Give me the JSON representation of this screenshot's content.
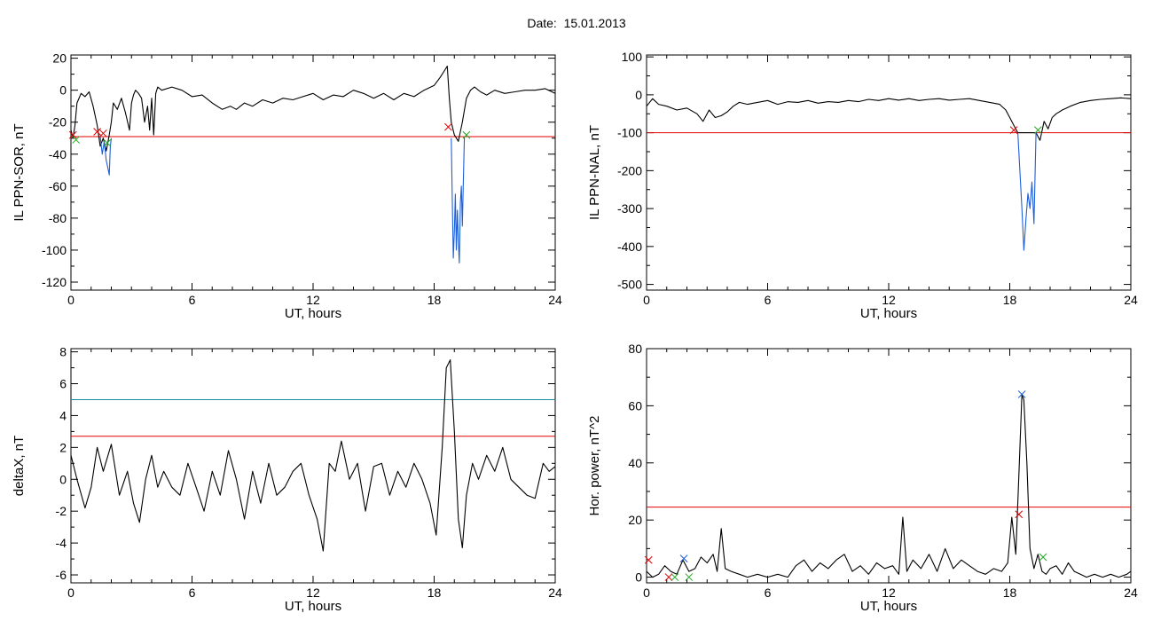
{
  "figure": {
    "title": "Date:  15.01.2013"
  },
  "chart_data": [
    {
      "type": "line",
      "xlabel": "UT, hours",
      "ylabel": "IL PPN-SOR, nT",
      "xlim": [
        0,
        24
      ],
      "ylim": [
        -125,
        22
      ],
      "xticks": [
        0,
        6,
        12,
        18,
        24
      ],
      "yticks": [
        -120,
        -100,
        -80,
        -60,
        -40,
        -20,
        0,
        20
      ],
      "threshold_lines": [
        {
          "value": -29,
          "color": "#e00000"
        }
      ],
      "series": [
        {
          "color": "#000000",
          "x": [
            0,
            0.1,
            0.2,
            0.3,
            0.5,
            0.7,
            0.9,
            1.1,
            1.3,
            1.45,
            1.6,
            1.75,
            1.9,
            2.0,
            2.1,
            2.3,
            2.5,
            2.7,
            2.9,
            3.0,
            3.1,
            3.2,
            3.35,
            3.5,
            3.65,
            3.8,
            3.9,
            4.0,
            4.1,
            4.2,
            4.3,
            4.5,
            5.0,
            5.5,
            6.0,
            6.5,
            7.0,
            7.5,
            7.9,
            8.2,
            8.6,
            9.0,
            9.5,
            10.0,
            10.5,
            11.0,
            11.5,
            12.0,
            12.5,
            13.0,
            13.5,
            14.0,
            14.5,
            15.0,
            15.5,
            16.0,
            16.5,
            17.0,
            17.5,
            18.0,
            18.3,
            18.5,
            18.65,
            18.75,
            18.85,
            19.0,
            19.2,
            19.4,
            19.6,
            19.8,
            20.0,
            20.3,
            20.6,
            21.0,
            21.5,
            22.0,
            22.5,
            23.0,
            23.5,
            24.0
          ],
          "y": [
            -25,
            -30,
            -22,
            -8,
            -2,
            -4,
            -1,
            -10,
            -22,
            -35,
            -30,
            -38,
            -28,
            -20,
            -8,
            -12,
            -5,
            -14,
            -25,
            -8,
            -3,
            0,
            -2,
            -5,
            -20,
            -10,
            -25,
            -5,
            -28,
            -2,
            2,
            0,
            2,
            0,
            -4,
            -3,
            -8,
            -12,
            -10,
            -12,
            -8,
            -10,
            -6,
            -8,
            -5,
            -6,
            -4,
            -2,
            -6,
            -3,
            -4,
            0,
            -2,
            -5,
            -2,
            -6,
            -2,
            -4,
            0,
            3,
            8,
            12,
            15,
            -5,
            -20,
            -28,
            -32,
            -20,
            -5,
            0,
            2,
            -1,
            -3,
            0,
            -2,
            -1,
            0,
            0,
            1,
            -2
          ]
        },
        {
          "color": "#1f5fd6",
          "segments": [
            {
              "x": [
                1.45,
                1.55,
                1.65,
                1.75,
                1.82,
                1.9,
                1.95,
                2.0
              ],
              "y": [
                -29,
                -40,
                -32,
                -44,
                -48,
                -53,
                -35,
                -30
              ]
            },
            {
              "x": [
                18.85,
                18.9,
                18.95,
                19.0,
                19.05,
                19.1,
                19.15,
                19.2,
                19.25,
                19.3,
                19.35,
                19.4,
                19.45,
                19.5
              ],
              "y": [
                -30,
                -70,
                -105,
                -88,
                -65,
                -100,
                -75,
                -95,
                -108,
                -70,
                -60,
                -85,
                -55,
                -29
              ]
            }
          ]
        }
      ],
      "markers": [
        {
          "x": 0.1,
          "y": -28,
          "color": "#e00000"
        },
        {
          "x": 0.25,
          "y": -31,
          "color": "#22aa22"
        },
        {
          "x": 1.3,
          "y": -26,
          "color": "#e00000"
        },
        {
          "x": 1.8,
          "y": -33,
          "color": "#22aa22"
        },
        {
          "x": 1.6,
          "y": -27,
          "color": "#e00000"
        },
        {
          "x": 18.7,
          "y": -23,
          "color": "#e00000"
        },
        {
          "x": 19.6,
          "y": -28,
          "color": "#22aa22"
        }
      ]
    },
    {
      "type": "line",
      "xlabel": "UT, hours",
      "ylabel": "IL PPN-NAL, nT",
      "xlim": [
        0,
        24
      ],
      "ylim": [
        -515,
        105
      ],
      "xticks": [
        0,
        6,
        12,
        18,
        24
      ],
      "yticks": [
        -500,
        -400,
        -300,
        -200,
        -100,
        0,
        100
      ],
      "threshold_lines": [
        {
          "value": -100,
          "color": "#e00000"
        }
      ],
      "series": [
        {
          "color": "#000000",
          "x": [
            0,
            0.3,
            0.6,
            1.0,
            1.5,
            2.0,
            2.5,
            2.8,
            3.1,
            3.4,
            3.7,
            4.0,
            4.3,
            4.6,
            5.0,
            5.5,
            6.0,
            6.5,
            7.0,
            7.5,
            8.0,
            8.5,
            9.0,
            9.5,
            10.0,
            10.5,
            11.0,
            11.5,
            12.0,
            12.5,
            13.0,
            13.5,
            14.0,
            14.5,
            15.0,
            15.5,
            16.0,
            16.5,
            17.0,
            17.5,
            17.8,
            18.0,
            18.2,
            18.4,
            19.3,
            19.5,
            19.7,
            19.9,
            20.1,
            20.3,
            20.6,
            21.0,
            21.5,
            22.0,
            22.5,
            23.0,
            23.5,
            24.0
          ],
          "y": [
            -30,
            -10,
            -25,
            -30,
            -40,
            -35,
            -50,
            -70,
            -40,
            -60,
            -55,
            -45,
            -30,
            -20,
            -25,
            -20,
            -15,
            -25,
            -18,
            -20,
            -15,
            -22,
            -18,
            -20,
            -15,
            -18,
            -12,
            -15,
            -10,
            -14,
            -10,
            -15,
            -12,
            -10,
            -14,
            -12,
            -10,
            -15,
            -20,
            -25,
            -40,
            -60,
            -80,
            -100,
            -100,
            -120,
            -70,
            -90,
            -60,
            -50,
            -40,
            -30,
            -20,
            -15,
            -12,
            -10,
            -8,
            -10
          ]
        },
        {
          "color": "#1f5fd6",
          "segments": [
            {
              "x": [
                18.4,
                18.5,
                18.6,
                18.7,
                18.8,
                18.9,
                19.0,
                19.1,
                19.2,
                19.3
              ],
              "y": [
                -100,
                -200,
                -300,
                -410,
                -330,
                -260,
                -300,
                -230,
                -340,
                -100
              ]
            }
          ]
        }
      ],
      "markers": [
        {
          "x": 18.2,
          "y": -93,
          "color": "#e00000"
        },
        {
          "x": 19.4,
          "y": -93,
          "color": "#22aa22"
        }
      ]
    },
    {
      "type": "line",
      "xlabel": "UT, hours",
      "ylabel": "deltaX, nT",
      "xlim": [
        0,
        24
      ],
      "ylim": [
        -6.5,
        8.2
      ],
      "xticks": [
        0,
        6,
        12,
        18,
        24
      ],
      "yticks": [
        -6,
        -4,
        -2,
        0,
        2,
        4,
        6,
        8
      ],
      "threshold_lines": [
        {
          "value": 5.0,
          "color": "#1f8fa0"
        },
        {
          "value": 2.7,
          "color": "#e00000"
        }
      ],
      "series": [
        {
          "color": "#000000",
          "x": [
            0,
            0.3,
            0.7,
            1.0,
            1.3,
            1.6,
            2.0,
            2.4,
            2.8,
            3.1,
            3.4,
            3.7,
            4.0,
            4.3,
            4.6,
            5.0,
            5.4,
            5.8,
            6.2,
            6.6,
            7.0,
            7.4,
            7.8,
            8.2,
            8.6,
            9.0,
            9.4,
            9.8,
            10.2,
            10.6,
            11.0,
            11.4,
            11.8,
            12.2,
            12.5,
            12.8,
            13.1,
            13.4,
            13.8,
            14.2,
            14.6,
            15.0,
            15.4,
            15.8,
            16.2,
            16.6,
            17.0,
            17.4,
            17.8,
            18.1,
            18.4,
            18.6,
            18.8,
            19.0,
            19.2,
            19.4,
            19.6,
            19.9,
            20.2,
            20.6,
            21.0,
            21.4,
            21.8,
            22.2,
            22.6,
            23.0,
            23.4,
            23.7,
            24.0
          ],
          "y": [
            1.5,
            0,
            -1.8,
            -0.5,
            2.0,
            0.5,
            2.2,
            -1.0,
            0.5,
            -1.5,
            -2.7,
            0,
            1.5,
            -0.5,
            0.5,
            -0.5,
            -1.0,
            1.0,
            -0.5,
            -2.0,
            0.5,
            -1.0,
            1.8,
            0,
            -2.5,
            0.5,
            -1.5,
            1.0,
            -1.0,
            -0.5,
            0.5,
            1.0,
            -1.0,
            -2.5,
            -4.5,
            1.0,
            0.5,
            2.4,
            0,
            1.0,
            -2.0,
            0.8,
            1.0,
            -1.0,
            0.5,
            -0.5,
            1.0,
            0,
            -1.5,
            -3.5,
            2.0,
            7.0,
            7.5,
            3.0,
            -2.5,
            -4.3,
            -1.0,
            1.0,
            0,
            1.5,
            0.5,
            2.0,
            0,
            -0.5,
            -1.0,
            -1.2,
            1.0,
            0.5,
            0.8
          ]
        }
      ],
      "markers": []
    },
    {
      "type": "line",
      "xlabel": "UT, hours",
      "ylabel": "Hor. power, nT^2",
      "xlim": [
        0,
        24
      ],
      "ylim": [
        -2,
        80
      ],
      "xticks": [
        0,
        6,
        12,
        18,
        24
      ],
      "yticks": [
        0,
        20,
        40,
        60,
        80
      ],
      "threshold_lines": [
        {
          "value": 24.5,
          "color": "#e00000"
        }
      ],
      "series": [
        {
          "color": "#000000",
          "x": [
            0,
            0.3,
            0.6,
            0.9,
            1.2,
            1.5,
            1.8,
            2.1,
            2.4,
            2.7,
            3.0,
            3.3,
            3.5,
            3.7,
            3.9,
            4.2,
            4.6,
            5.0,
            5.5,
            6.0,
            6.5,
            7.0,
            7.4,
            7.8,
            8.2,
            8.6,
            9.0,
            9.4,
            9.8,
            10.2,
            10.6,
            11.0,
            11.4,
            11.8,
            12.2,
            12.5,
            12.7,
            12.9,
            13.2,
            13.6,
            14.0,
            14.4,
            14.8,
            15.2,
            15.6,
            16.0,
            16.4,
            16.8,
            17.2,
            17.6,
            17.9,
            18.1,
            18.3,
            18.45,
            18.6,
            18.7,
            18.85,
            19.0,
            19.2,
            19.4,
            19.6,
            19.8,
            20.0,
            20.3,
            20.6,
            20.9,
            21.2,
            21.5,
            21.8,
            22.2,
            22.6,
            23.0,
            23.4,
            23.8,
            24.0
          ],
          "y": [
            2,
            0,
            1,
            4,
            2,
            1,
            6,
            2,
            3,
            7,
            5,
            8,
            2,
            17,
            3,
            2,
            1,
            0,
            1,
            0,
            1,
            0,
            4,
            6,
            2,
            5,
            3,
            6,
            8,
            2,
            4,
            1,
            5,
            3,
            4,
            1,
            21,
            2,
            6,
            3,
            8,
            2,
            10,
            3,
            6,
            4,
            2,
            1,
            3,
            2,
            5,
            21,
            8,
            35,
            64,
            62,
            40,
            10,
            3,
            8,
            2,
            1,
            3,
            4,
            1,
            5,
            2,
            1,
            0,
            1,
            0,
            1,
            0,
            1,
            2
          ]
        }
      ],
      "markers": [
        {
          "x": 0.1,
          "y": 6,
          "color": "#e00000"
        },
        {
          "x": 1.1,
          "y": 0,
          "color": "#e00000"
        },
        {
          "x": 1.85,
          "y": 6.5,
          "color": "#1f5fd6"
        },
        {
          "x": 1.4,
          "y": 0,
          "color": "#22aa22"
        },
        {
          "x": 2.1,
          "y": 0,
          "color": "#22aa22"
        },
        {
          "x": 18.6,
          "y": 64,
          "color": "#1f5fd6"
        },
        {
          "x": 18.45,
          "y": 22,
          "color": "#e00000"
        },
        {
          "x": 19.65,
          "y": 7,
          "color": "#22aa22"
        }
      ]
    }
  ]
}
